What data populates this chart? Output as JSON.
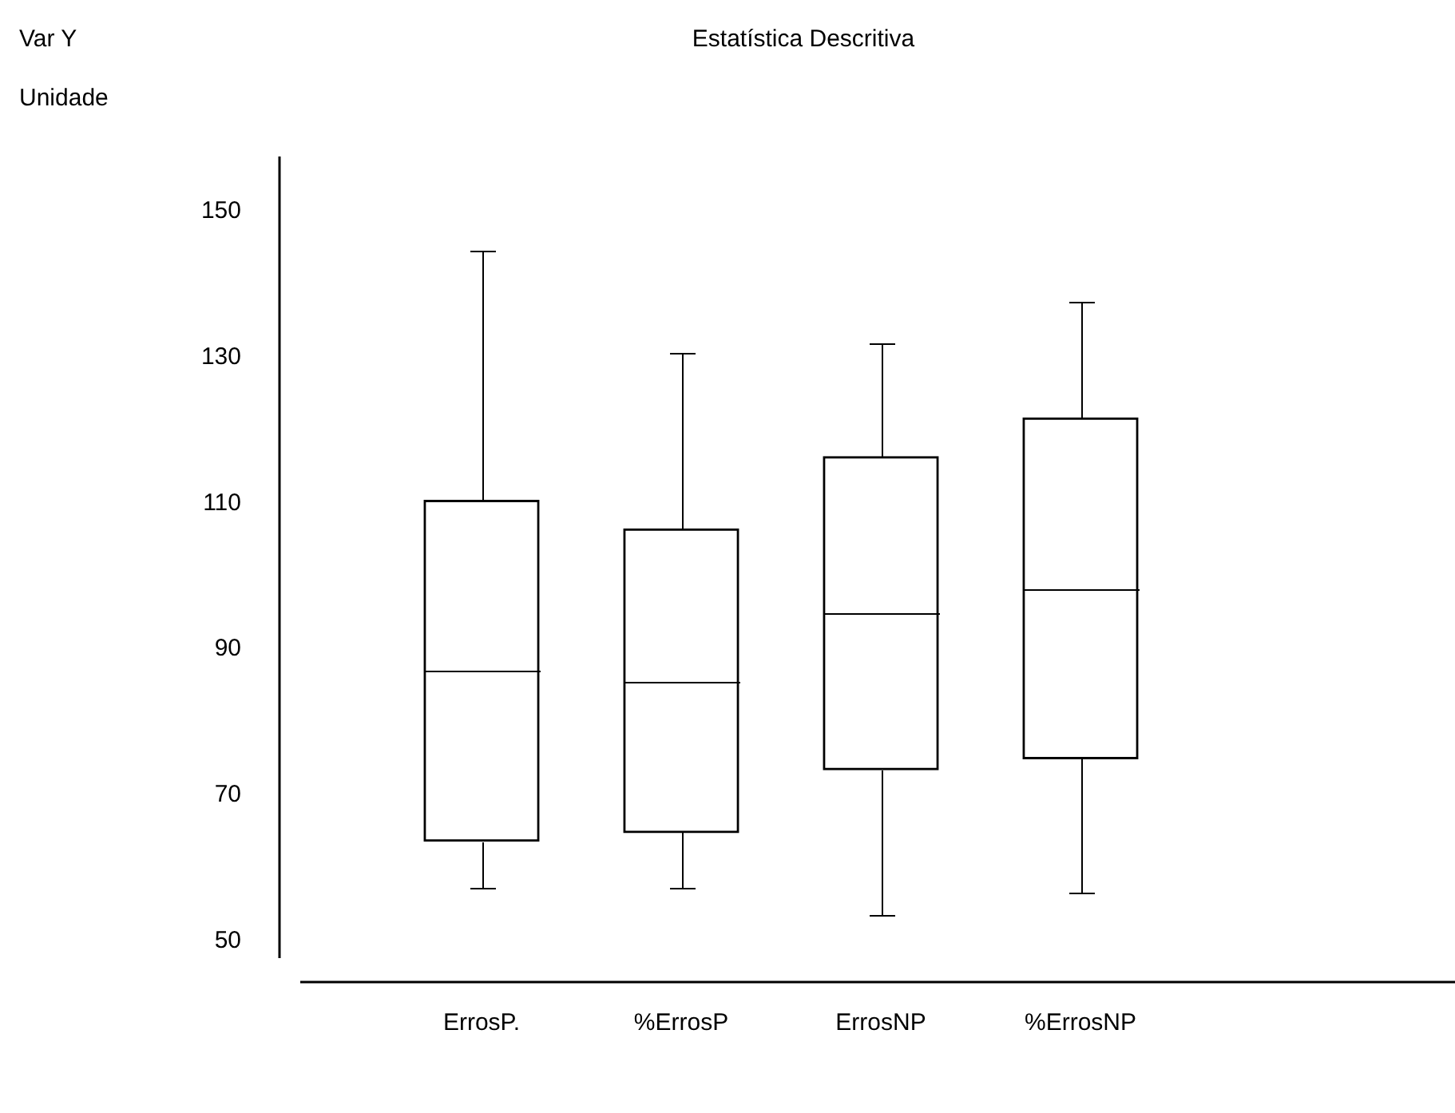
{
  "chart_data": {
    "type": "box",
    "title": "Estatística Descritiva",
    "annotations": [
      "Var Y",
      "Unidade"
    ],
    "categories": [
      "ErrosP.",
      "%ErrosP",
      "ErrosNP",
      "%ErrosNP"
    ],
    "boxes": [
      {
        "low": 57.4,
        "q1": 63.7,
        "median": 87,
        "q3": 110.4,
        "high": 144.6
      },
      {
        "low": 57.4,
        "q1": 64.9,
        "median": 85.6,
        "q3": 106.5,
        "high": 130.7
      },
      {
        "low": 53.5,
        "q1": 73.5,
        "median": 94.9,
        "q3": 116.4,
        "high": 131.8
      },
      {
        "low": 56.6,
        "q1": 75,
        "median": 98.3,
        "q3": 121.7,
        "high": 137.7
      }
    ],
    "color": "#000000",
    "ylim": [
      47.7,
      157.5
    ],
    "yticks": [
      50,
      70,
      90,
      110,
      130,
      150
    ],
    "grid": false,
    "legend": false
  }
}
